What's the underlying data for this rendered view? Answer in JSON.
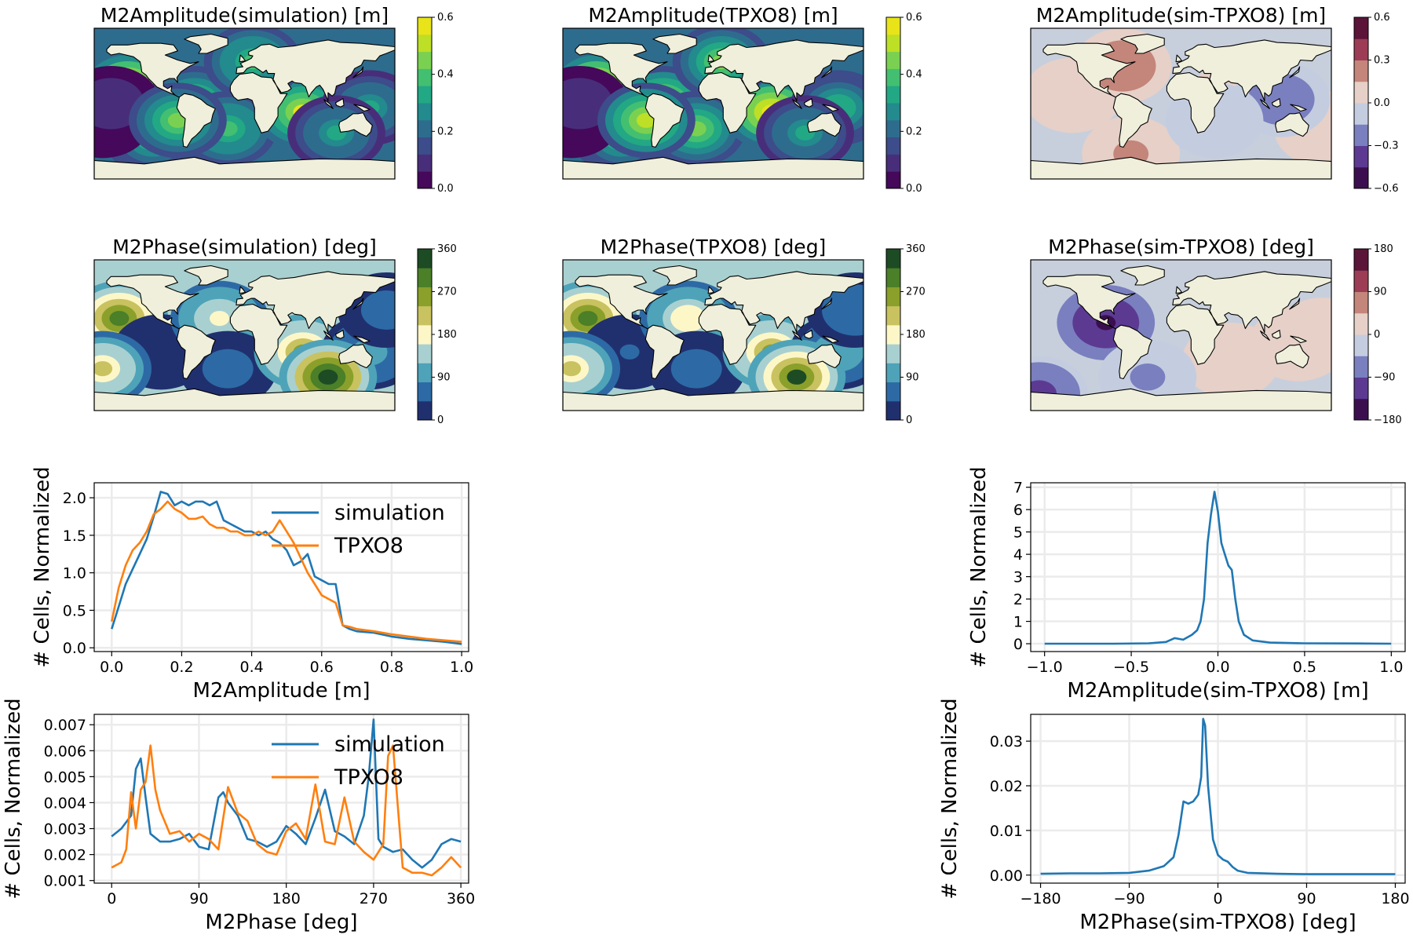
{
  "chart_data": [
    {
      "type": "heatmap",
      "title": "M2Amplitude(simulation) [m]",
      "colorbar": {
        "ticks": [
          "0.0",
          "0.2",
          "0.4",
          "0.6"
        ],
        "range": [
          0,
          0.6
        ]
      },
      "colors": [
        "#45085a",
        "#482e7a",
        "#3d4c8a",
        "#2e6c8e",
        "#238a8d",
        "#22a884",
        "#43bf71",
        "#7ad151",
        "#bddf26",
        "#e8e419"
      ],
      "blobs": [
        {
          "lon": -140,
          "lat": 20,
          "val": 0.6
        },
        {
          "lon": -60,
          "lat": 0,
          "val": 0.45
        },
        {
          "lon": -20,
          "lat": -30,
          "val": 0.4
        },
        {
          "lon": 70,
          "lat": -10,
          "val": 0.55
        },
        {
          "lon": 150,
          "lat": -5,
          "val": 0.3
        },
        {
          "lon": -110,
          "lat": -40,
          "val": 0.35
        },
        {
          "lon": 10,
          "lat": 50,
          "val": 0.4
        },
        {
          "lon": -170,
          "lat": -20,
          "val": 0.05
        },
        {
          "lon": -160,
          "lat": 0,
          "val": 0.1
        },
        {
          "lon": 110,
          "lat": -35,
          "val": 0.3
        },
        {
          "lon": -80,
          "lat": -20,
          "val": 0.45
        }
      ]
    },
    {
      "type": "heatmap",
      "title": "M2Amplitude(TPXO8) [m]",
      "colorbar": {
        "ticks": [
          "0.0",
          "0.2",
          "0.4",
          "0.6"
        ],
        "range": [
          0,
          0.6
        ]
      },
      "colors": [
        "#45085a",
        "#482e7a",
        "#3d4c8a",
        "#2e6c8e",
        "#238a8d",
        "#22a884",
        "#43bf71",
        "#7ad151",
        "#bddf26",
        "#e8e419"
      ],
      "blobs": [
        {
          "lon": -140,
          "lat": 20,
          "val": 0.6
        },
        {
          "lon": -60,
          "lat": 0,
          "val": 0.5
        },
        {
          "lon": -20,
          "lat": -30,
          "val": 0.45
        },
        {
          "lon": 70,
          "lat": -10,
          "val": 0.6
        },
        {
          "lon": 150,
          "lat": -5,
          "val": 0.35
        },
        {
          "lon": -110,
          "lat": -40,
          "val": 0.35
        },
        {
          "lon": 10,
          "lat": 50,
          "val": 0.45
        },
        {
          "lon": -170,
          "lat": -20,
          "val": 0.05
        },
        {
          "lon": -160,
          "lat": 0,
          "val": 0.1
        },
        {
          "lon": 110,
          "lat": -35,
          "val": 0.3
        },
        {
          "lon": -80,
          "lat": -20,
          "val": 0.5
        }
      ]
    },
    {
      "type": "heatmap",
      "title": "M2Amplitude(sim-TPXO8) [m]",
      "colorbar": {
        "ticks": [
          "0.6",
          "0.3",
          "0.0",
          "−0.3",
          "−0.6"
        ],
        "range": [
          -0.6,
          0.6
        ]
      },
      "colors": [
        "#3b0f4f",
        "#5c3a92",
        "#7a7fbf",
        "#c4cde0",
        "#e6d0c8",
        "#c4857a",
        "#9c3d55",
        "#5a1538"
      ],
      "background": "#c7cfdc",
      "blobs": [
        {
          "lon": -130,
          "lat": 10,
          "val": 0.12
        },
        {
          "lon": 60,
          "lat": 0,
          "val": 0.1
        },
        {
          "lon": 170,
          "lat": -30,
          "val": 0.1
        },
        {
          "lon": -60,
          "lat": -60,
          "val": 0.2
        },
        {
          "lon": 120,
          "lat": 5,
          "val": -0.3
        },
        {
          "lon": -70,
          "lat": 45,
          "val": 0.25
        },
        {
          "lon": 40,
          "lat": -20,
          "val": -0.15
        }
      ]
    },
    {
      "type": "heatmap",
      "title": "M2Phase(simulation) [deg]",
      "colorbar": {
        "ticks": [
          "0",
          "90",
          "180",
          "270",
          "360"
        ],
        "range": [
          0,
          360
        ]
      },
      "colors": [
        "#20306e",
        "#2d6aa5",
        "#4ea3b8",
        "#a9d0d0",
        "#fdf7c8",
        "#c9c260",
        "#8aa02a",
        "#4b7f28",
        "#1d4b24"
      ],
      "blobs": [
        {
          "lon": -150,
          "lat": 20,
          "val": 300
        },
        {
          "lon": -100,
          "lat": -20,
          "val": 30
        },
        {
          "lon": -30,
          "lat": 20,
          "val": 180
        },
        {
          "lon": -20,
          "lat": -40,
          "val": 60
        },
        {
          "lon": 70,
          "lat": -20,
          "val": 250
        },
        {
          "lon": 150,
          "lat": -20,
          "val": 100
        },
        {
          "lon": 100,
          "lat": -50,
          "val": 330
        },
        {
          "lon": -170,
          "lat": -40,
          "val": 200
        },
        {
          "lon": 170,
          "lat": 30,
          "val": 60
        }
      ]
    },
    {
      "type": "heatmap",
      "title": "M2Phase(TPXO8) [deg]",
      "colorbar": {
        "ticks": [
          "0",
          "90",
          "180",
          "270",
          "360"
        ],
        "range": [
          0,
          360
        ]
      },
      "colors": [
        "#20306e",
        "#2d6aa5",
        "#4ea3b8",
        "#a9d0d0",
        "#fdf7c8",
        "#c9c260",
        "#8aa02a",
        "#4b7f28",
        "#1d4b24"
      ],
      "blobs": [
        {
          "lon": -150,
          "lat": 20,
          "val": 310
        },
        {
          "lon": -100,
          "lat": -20,
          "val": 40
        },
        {
          "lon": -30,
          "lat": 20,
          "val": 190
        },
        {
          "lon": -20,
          "lat": -40,
          "val": 60
        },
        {
          "lon": 70,
          "lat": -20,
          "val": 260
        },
        {
          "lon": 150,
          "lat": -20,
          "val": 110
        },
        {
          "lon": 100,
          "lat": -50,
          "val": 320
        },
        {
          "lon": -170,
          "lat": -40,
          "val": 210
        },
        {
          "lon": 170,
          "lat": 30,
          "val": 70
        }
      ]
    },
    {
      "type": "heatmap",
      "title": "M2Phase(sim-TPXO8) [deg]",
      "colorbar": {
        "ticks": [
          "180",
          "90",
          "0",
          "−90",
          "−180"
        ],
        "range": [
          -180,
          180
        ]
      },
      "colors": [
        "#3b0f4f",
        "#5c3a92",
        "#7a7fbf",
        "#c4cde0",
        "#e6d0c8",
        "#c4857a",
        "#9c3d55",
        "#5a1538"
      ],
      "background": "#c7cfdc",
      "blobs": [
        {
          "lon": -90,
          "lat": 15,
          "val": -150
        },
        {
          "lon": 60,
          "lat": -30,
          "val": 30
        },
        {
          "lon": 140,
          "lat": -10,
          "val": 60
        },
        {
          "lon": -170,
          "lat": -70,
          "val": -120
        },
        {
          "lon": -40,
          "lat": -50,
          "val": -60
        },
        {
          "lon": 170,
          "lat": 0,
          "val": 40
        }
      ]
    },
    {
      "type": "line",
      "xlabel": "M2Amplitude [m]",
      "ylabel": "# Cells, Normalized",
      "xlim": [
        -0.05,
        1.02
      ],
      "ylim": [
        -0.05,
        2.2
      ],
      "xticks": [
        0.0,
        0.2,
        0.4,
        0.6,
        0.8,
        1.0
      ],
      "xtick_labels": [
        "0.0",
        "0.2",
        "0.4",
        "0.6",
        "0.8",
        "1.0"
      ],
      "yticks": [
        0.0,
        0.5,
        1.0,
        1.5,
        2.0
      ],
      "ytick_labels": [
        "0.0",
        "0.5",
        "1.0",
        "1.5",
        "2.0"
      ],
      "legend": "upper right",
      "series": [
        {
          "name": "simulation",
          "color": "#1f77b4",
          "x": [
            0,
            0.02,
            0.04,
            0.06,
            0.08,
            0.1,
            0.12,
            0.14,
            0.16,
            0.18,
            0.2,
            0.22,
            0.24,
            0.26,
            0.28,
            0.3,
            0.32,
            0.34,
            0.36,
            0.38,
            0.4,
            0.42,
            0.44,
            0.46,
            0.48,
            0.5,
            0.52,
            0.54,
            0.56,
            0.58,
            0.6,
            0.62,
            0.64,
            0.66,
            0.68,
            0.7,
            0.75,
            0.8,
            0.85,
            0.9,
            0.95,
            1.0
          ],
          "y": [
            0.25,
            0.55,
            0.85,
            1.05,
            1.25,
            1.45,
            1.75,
            2.08,
            2.05,
            1.9,
            1.95,
            1.9,
            1.95,
            1.95,
            1.9,
            1.95,
            1.7,
            1.65,
            1.6,
            1.55,
            1.55,
            1.5,
            1.55,
            1.45,
            1.4,
            1.3,
            1.1,
            1.15,
            1.25,
            0.95,
            0.9,
            0.85,
            0.85,
            0.3,
            0.25,
            0.22,
            0.2,
            0.15,
            0.12,
            0.1,
            0.08,
            0.05
          ]
        },
        {
          "name": "TPXO8",
          "color": "#ff7f0e",
          "x": [
            0,
            0.02,
            0.04,
            0.06,
            0.08,
            0.1,
            0.12,
            0.14,
            0.16,
            0.18,
            0.2,
            0.22,
            0.24,
            0.26,
            0.28,
            0.3,
            0.32,
            0.34,
            0.36,
            0.38,
            0.4,
            0.42,
            0.44,
            0.46,
            0.48,
            0.5,
            0.52,
            0.54,
            0.56,
            0.58,
            0.6,
            0.62,
            0.64,
            0.66,
            0.68,
            0.7,
            0.75,
            0.8,
            0.85,
            0.9,
            0.95,
            1.0
          ],
          "y": [
            0.35,
            0.8,
            1.1,
            1.3,
            1.4,
            1.55,
            1.78,
            1.85,
            1.95,
            1.85,
            1.8,
            1.72,
            1.72,
            1.75,
            1.65,
            1.6,
            1.6,
            1.55,
            1.55,
            1.5,
            1.5,
            1.55,
            1.5,
            1.55,
            1.7,
            1.55,
            1.4,
            1.2,
            1.0,
            0.85,
            0.7,
            0.65,
            0.6,
            0.3,
            0.28,
            0.25,
            0.22,
            0.18,
            0.15,
            0.12,
            0.1,
            0.08
          ]
        }
      ]
    },
    {
      "type": "line",
      "xlabel": "M2Amplitude(sim-TPXO8) [m]",
      "ylabel": "# Cells, Normalized",
      "xlim": [
        -1.08,
        1.08
      ],
      "ylim": [
        -0.35,
        7.2
      ],
      "xticks": [
        -1.0,
        -0.5,
        0.0,
        0.5,
        1.0
      ],
      "xtick_labels": [
        "−1.0",
        "−0.5",
        "0.0",
        "0.5",
        "1.0"
      ],
      "yticks": [
        0,
        1,
        2,
        3,
        4,
        5,
        6,
        7
      ],
      "ytick_labels": [
        "0",
        "1",
        "2",
        "3",
        "4",
        "5",
        "6",
        "7"
      ],
      "series": [
        {
          "color": "#1f77b4",
          "x": [
            -1.0,
            -0.8,
            -0.6,
            -0.4,
            -0.3,
            -0.25,
            -0.2,
            -0.15,
            -0.12,
            -0.1,
            -0.08,
            -0.06,
            -0.04,
            -0.02,
            0.0,
            0.02,
            0.04,
            0.06,
            0.08,
            0.1,
            0.12,
            0.15,
            0.2,
            0.3,
            0.5,
            0.8,
            1.0
          ],
          "y": [
            0.0,
            0.0,
            0.0,
            0.02,
            0.08,
            0.25,
            0.18,
            0.4,
            0.6,
            1.0,
            2.0,
            4.5,
            5.8,
            6.8,
            5.9,
            4.5,
            4.0,
            3.5,
            3.3,
            2.0,
            1.0,
            0.4,
            0.15,
            0.05,
            0.02,
            0.01,
            0.0
          ]
        }
      ]
    },
    {
      "type": "line",
      "xlabel": "M2Phase [deg]",
      "ylabel": "# Cells, Normalized",
      "xlim": [
        -18,
        368
      ],
      "ylim": [
        0.0009,
        0.0074
      ],
      "xticks": [
        0,
        90,
        180,
        270,
        360
      ],
      "xtick_labels": [
        "0",
        "90",
        "180",
        "270",
        "360"
      ],
      "yticks": [
        0.001,
        0.002,
        0.003,
        0.004,
        0.005,
        0.006,
        0.007
      ],
      "ytick_labels": [
        "0.001",
        "0.002",
        "0.003",
        "0.004",
        "0.005",
        "0.006",
        "0.007"
      ],
      "legend": "upper right",
      "series": [
        {
          "name": "simulation",
          "color": "#1f77b4",
          "x": [
            0,
            10,
            20,
            25,
            30,
            35,
            40,
            50,
            60,
            70,
            80,
            90,
            100,
            110,
            115,
            120,
            130,
            140,
            150,
            160,
            170,
            180,
            190,
            200,
            210,
            220,
            230,
            240,
            250,
            260,
            265,
            270,
            275,
            280,
            290,
            300,
            310,
            320,
            330,
            340,
            350,
            360
          ],
          "y": [
            0.0027,
            0.003,
            0.0035,
            0.0053,
            0.0057,
            0.0042,
            0.0028,
            0.0025,
            0.0025,
            0.0026,
            0.0028,
            0.0023,
            0.0022,
            0.0042,
            0.0044,
            0.004,
            0.0035,
            0.0026,
            0.0025,
            0.0023,
            0.0025,
            0.0031,
            0.0028,
            0.0024,
            0.0034,
            0.0045,
            0.0029,
            0.0027,
            0.0024,
            0.0035,
            0.005,
            0.0072,
            0.0026,
            0.0023,
            0.0021,
            0.0022,
            0.0018,
            0.0015,
            0.0018,
            0.0024,
            0.0026,
            0.0025
          ]
        },
        {
          "name": "TPXO8",
          "color": "#ff7f0e",
          "x": [
            0,
            10,
            15,
            20,
            25,
            30,
            35,
            40,
            45,
            50,
            60,
            70,
            80,
            90,
            100,
            110,
            120,
            130,
            140,
            150,
            160,
            170,
            180,
            190,
            200,
            210,
            220,
            230,
            240,
            250,
            260,
            270,
            280,
            285,
            290,
            300,
            310,
            320,
            330,
            340,
            350,
            360
          ],
          "y": [
            0.0015,
            0.0017,
            0.0022,
            0.0044,
            0.003,
            0.0045,
            0.0048,
            0.0062,
            0.0045,
            0.0037,
            0.0028,
            0.0029,
            0.0025,
            0.0028,
            0.0026,
            0.0022,
            0.0046,
            0.0036,
            0.0033,
            0.0024,
            0.0021,
            0.002,
            0.0029,
            0.0032,
            0.0026,
            0.0047,
            0.0025,
            0.0024,
            0.0042,
            0.0025,
            0.0021,
            0.0018,
            0.0024,
            0.0058,
            0.0062,
            0.0015,
            0.0013,
            0.0013,
            0.0012,
            0.0015,
            0.0019,
            0.0015
          ]
        }
      ]
    },
    {
      "type": "line",
      "xlabel": "M2Phase(sim-TPXO8) [deg]",
      "ylabel": "# Cells, Normalized",
      "xlim": [
        -190,
        190
      ],
      "ylim": [
        -0.0018,
        0.036
      ],
      "xticks": [
        -180,
        -90,
        0,
        90,
        180
      ],
      "xtick_labels": [
        "−180",
        "−90",
        "0",
        "90",
        "180"
      ],
      "yticks": [
        0.0,
        0.01,
        0.02,
        0.03
      ],
      "ytick_labels": [
        "0.00",
        "0.01",
        "0.02",
        "0.03"
      ],
      "series": [
        {
          "color": "#1f77b4",
          "x": [
            -180,
            -150,
            -120,
            -90,
            -70,
            -55,
            -45,
            -40,
            -35,
            -30,
            -25,
            -20,
            -17,
            -15,
            -13,
            -10,
            -5,
            0,
            5,
            10,
            15,
            20,
            30,
            60,
            90,
            120,
            180
          ],
          "y": [
            0.0003,
            0.0004,
            0.0004,
            0.0005,
            0.001,
            0.002,
            0.004,
            0.009,
            0.0165,
            0.016,
            0.0165,
            0.018,
            0.022,
            0.035,
            0.0335,
            0.02,
            0.008,
            0.0045,
            0.0035,
            0.003,
            0.0018,
            0.001,
            0.0005,
            0.0003,
            0.0002,
            0.0002,
            0.0002
          ]
        }
      ]
    }
  ]
}
